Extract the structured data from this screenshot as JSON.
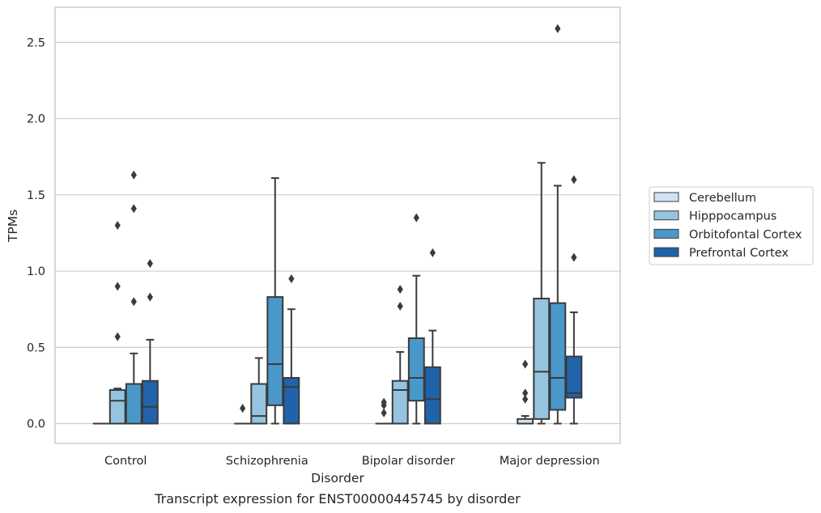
{
  "chart_data": {
    "type": "box",
    "caption": "Transcript expression for ENST00000445745 by disorder",
    "xlabel": "Disorder",
    "ylabel": "TPMs",
    "ylim": [
      -0.13,
      2.73
    ],
    "yticks": [
      "0.0",
      "0.5",
      "1.0",
      "1.5",
      "2.0",
      "2.5"
    ],
    "grid": true,
    "legend_position": "right",
    "categories": [
      "Control",
      "Schizophrenia",
      "Bipolar disorder",
      "Major depression"
    ],
    "series": [
      {
        "name": "Cerebellum",
        "color": "#d0e2f2",
        "boxes": [
          {
            "q1": 0,
            "median": 0,
            "q3": 0,
            "whisker_low": 0,
            "whisker_high": 0,
            "outliers": []
          },
          {
            "q1": 0,
            "median": 0,
            "q3": 0,
            "whisker_low": 0,
            "whisker_high": 0,
            "outliers": [
              0.1
            ]
          },
          {
            "q1": 0,
            "median": 0,
            "q3": 0,
            "whisker_low": 0,
            "whisker_high": 0,
            "outliers": [
              0.07,
              0.12,
              0.14
            ]
          },
          {
            "q1": 0,
            "median": 0,
            "q3": 0.03,
            "whisker_low": 0,
            "whisker_high": 0.05,
            "outliers": [
              0.16,
              0.2,
              0.39
            ]
          }
        ]
      },
      {
        "name": "Hipppocampus",
        "color": "#94c4df",
        "boxes": [
          {
            "q1": 0,
            "median": 0.15,
            "q3": 0.22,
            "whisker_low": 0,
            "whisker_high": 0.23,
            "outliers": [
              0.57,
              0.9,
              1.3
            ]
          },
          {
            "q1": 0,
            "median": 0.05,
            "q3": 0.26,
            "whisker_low": 0,
            "whisker_high": 0.43,
            "outliers": []
          },
          {
            "q1": 0,
            "median": 0.22,
            "q3": 0.28,
            "whisker_low": 0,
            "whisker_high": 0.47,
            "outliers": [
              0.77,
              0.88
            ]
          },
          {
            "q1": 0.03,
            "median": 0.34,
            "q3": 0.82,
            "whisker_low": 0,
            "whisker_high": 1.71,
            "outliers": []
          }
        ]
      },
      {
        "name": "Orbitofontal Cortex",
        "color": "#4a98c9",
        "boxes": [
          {
            "q1": 0,
            "median": 0,
            "q3": 0.26,
            "whisker_low": 0,
            "whisker_high": 0.46,
            "outliers": [
              0.8,
              1.41,
              1.63
            ]
          },
          {
            "q1": 0.12,
            "median": 0.39,
            "q3": 0.83,
            "whisker_low": 0,
            "whisker_high": 1.61,
            "outliers": []
          },
          {
            "q1": 0.15,
            "median": 0.3,
            "q3": 0.56,
            "whisker_low": 0,
            "whisker_high": 0.97,
            "outliers": [
              1.35
            ]
          },
          {
            "q1": 0.09,
            "median": 0.3,
            "q3": 0.79,
            "whisker_low": 0,
            "whisker_high": 1.56,
            "outliers": [
              2.59
            ]
          }
        ]
      },
      {
        "name": "Prefrontal Cortex",
        "color": "#2163aa",
        "boxes": [
          {
            "q1": 0,
            "median": 0.11,
            "q3": 0.28,
            "whisker_low": 0,
            "whisker_high": 0.55,
            "outliers": [
              0.83,
              1.05
            ]
          },
          {
            "q1": 0,
            "median": 0.24,
            "q3": 0.3,
            "whisker_low": 0,
            "whisker_high": 0.75,
            "outliers": [
              0.95
            ]
          },
          {
            "q1": 0,
            "median": 0.16,
            "q3": 0.37,
            "whisker_low": 0,
            "whisker_high": 0.61,
            "outliers": [
              1.12
            ]
          },
          {
            "q1": 0.17,
            "median": 0.2,
            "q3": 0.44,
            "whisker_low": 0,
            "whisker_high": 0.73,
            "outliers": [
              1.09,
              1.6
            ]
          }
        ]
      }
    ]
  }
}
